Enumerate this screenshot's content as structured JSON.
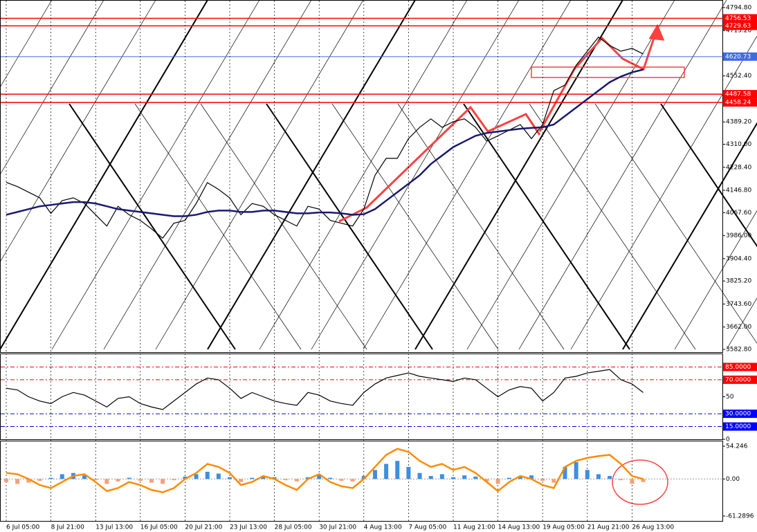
{
  "chart_data": [
    {
      "type": "line",
      "categories": [
        "6 Jul 05:00",
        null,
        null,
        null,
        "8 Jul 21:00",
        null,
        null,
        null,
        "13 Jul 13:00",
        null,
        null,
        null,
        "16 Jul 05:00",
        null,
        null,
        null,
        "20 Jul 21:00",
        null,
        null,
        null,
        "23 Jul 13:00",
        null,
        null,
        null,
        "28 Jul 05:00",
        null,
        null,
        null,
        "30 Jul 21:00",
        null,
        null,
        null,
        "4 Aug 13:00",
        null,
        null,
        null,
        "7 Aug 05:00",
        null,
        null,
        null,
        "11 Aug 21:00",
        null,
        null,
        null,
        "14 Aug 13:00",
        null,
        null,
        null,
        "19 Aug 05:00",
        null,
        null,
        null,
        "21 Aug 21:00",
        null,
        null,
        null,
        "26 Aug 13:00",
        null
      ],
      "series": [
        {
          "color": "#000000",
          "values": [
            4175,
            4160,
            4140,
            4120,
            4065,
            4110,
            4120,
            4100,
            4060,
            4020,
            4090,
            4060,
            4040,
            4010,
            3977,
            4030,
            4040,
            4100,
            4174,
            4150,
            4120,
            4060,
            4100,
            4090,
            4060,
            4040,
            4020,
            4090,
            4080,
            4040,
            4030,
            4020,
            4080,
            4200,
            4260,
            4260,
            4330,
            4370,
            4400,
            4370,
            4390,
            4400,
            4370,
            4321,
            4340,
            4360,
            4380,
            4330,
            4380,
            4500,
            4520,
            4590,
            4640,
            4690,
            4660,
            4640,
            4650,
            4630
          ]
        },
        {
          "color": "#191970",
          "values": [
            4060,
            4070,
            4080,
            4090,
            4095,
            4100,
            4105,
            4105,
            4100,
            4090,
            4080,
            4075,
            4070,
            4065,
            4060,
            4055,
            4055,
            4060,
            4070,
            4075,
            4075,
            4070,
            4070,
            4075,
            4075,
            4070,
            4065,
            4065,
            4068,
            4068,
            4065,
            4060,
            4062,
            4080,
            4110,
            4140,
            4170,
            4200,
            4240,
            4270,
            4300,
            4320,
            4340,
            4350,
            4355,
            4360,
            4365,
            4368,
            4370,
            4380,
            4410,
            4440,
            4470,
            4500,
            4530,
            4550,
            4565,
            4575
          ]
        }
      ],
      "ylim": [
        3573,
        4819
      ],
      "yticks": [
        {
          "value": 4794.8,
          "label": "4794.80"
        },
        {
          "value": 4713.2,
          "label": "4713.20"
        },
        {
          "value": 4552.4,
          "label": "4552.40"
        },
        {
          "value": 4389.2,
          "label": "4389.20"
        },
        {
          "value": 4310,
          "label": "4310.00"
        },
        {
          "value": 4228.4,
          "label": "4228.40"
        },
        {
          "value": 4146.8,
          "label": "4146.80"
        },
        {
          "value": 4067.6,
          "label": "4067.60"
        },
        {
          "value": 3986,
          "label": "3986.00"
        },
        {
          "value": 3904.4,
          "label": "3904.40"
        },
        {
          "value": 3825.2,
          "label": "3825.20"
        },
        {
          "value": 3743.6,
          "label": "3743.60"
        },
        {
          "value": 3662,
          "label": "3662.00"
        },
        {
          "value": 3582.8,
          "label": "3582.80"
        }
      ],
      "levels": [
        {
          "value": 4756.53,
          "color": "#ff0000"
        },
        {
          "value": 4729.63,
          "color": "#ff0000"
        },
        {
          "value": 4620.73,
          "color": "#4169e1"
        },
        {
          "value": 4487.58,
          "color": "#ff0000"
        },
        {
          "value": 4458.24,
          "color": "#ff0000"
        }
      ],
      "grid": true
    },
    {
      "type": "line",
      "series": [
        {
          "color": "#000000",
          "values": [
            60,
            58,
            50,
            45,
            42,
            50,
            55,
            52,
            45,
            38,
            48,
            50,
            42,
            38,
            35,
            45,
            55,
            65,
            72,
            70,
            60,
            48,
            55,
            50,
            45,
            42,
            40,
            55,
            52,
            45,
            42,
            40,
            55,
            65,
            72,
            75,
            78,
            74,
            72,
            70,
            68,
            72,
            70,
            60,
            50,
            58,
            62,
            60,
            45,
            55,
            72,
            74,
            78,
            80,
            82,
            70,
            65,
            55
          ]
        }
      ],
      "ylim": [
        0,
        100
      ],
      "yticks": [
        50,
        0
      ],
      "levels": [
        {
          "value": 85,
          "label": "85.0000",
          "color": "#ff0000"
        },
        {
          "value": 70,
          "label": "70.0000",
          "color": "#ff0000"
        },
        {
          "value": 30,
          "label": "30.0000",
          "color": "#0000ff"
        },
        {
          "value": 15,
          "label": "15.0000",
          "color": "#0000ff"
        }
      ],
      "grid": true
    },
    {
      "type": "bar",
      "values": [
        -5,
        -8,
        -6,
        -3,
        2,
        8,
        10,
        6,
        -2,
        -8,
        -4,
        2,
        -3,
        -6,
        -8,
        -2,
        4,
        8,
        12,
        9,
        3,
        -5,
        2,
        5,
        3,
        -2,
        -4,
        3,
        6,
        2,
        -3,
        -4,
        5,
        15,
        25,
        30,
        20,
        10,
        5,
        8,
        3,
        6,
        4,
        -4,
        -8,
        2,
        4,
        6,
        -3,
        -6,
        20,
        28,
        15,
        8,
        5,
        -2,
        -8,
        -5
      ],
      "positive_color": "#3d8fe0",
      "negative_color": "#f5a07a",
      "series": [
        {
          "color": "#ff8c00",
          "values": [
            10,
            8,
            0,
            -10,
            -15,
            -5,
            5,
            8,
            -5,
            -20,
            -15,
            -5,
            -10,
            -18,
            -22,
            -15,
            0,
            10,
            25,
            20,
            10,
            -10,
            -5,
            5,
            0,
            -10,
            -18,
            0,
            8,
            -5,
            -12,
            -15,
            0,
            20,
            40,
            50,
            45,
            30,
            20,
            25,
            15,
            20,
            10,
            -5,
            -20,
            -5,
            5,
            0,
            -10,
            -15,
            20,
            30,
            35,
            38,
            40,
            25,
            5,
            0
          ]
        }
      ],
      "ylim": [
        -69.4,
        62.3
      ],
      "yticks": [
        54.246,
        {
          "value": 0,
          "label": "0.00"
        },
        -61.2896
      ],
      "grid": true
    }
  ]
}
